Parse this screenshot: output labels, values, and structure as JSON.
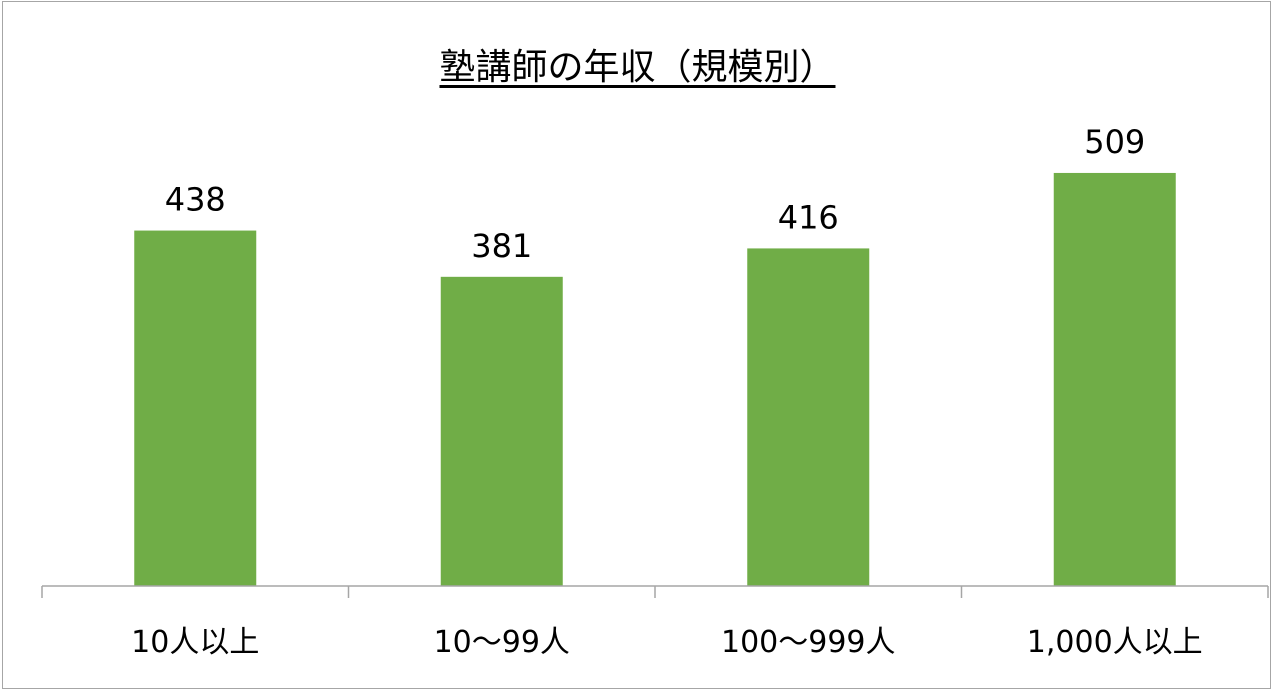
{
  "chart_data": {
    "type": "bar",
    "title": "塾講師の年収（規模別）",
    "categories": [
      "10人以上",
      "10〜99人",
      "100〜999人",
      "1,000人以上"
    ],
    "values": [
      438,
      381,
      416,
      509
    ],
    "data_labels": [
      "438",
      "381",
      "416",
      "509"
    ],
    "xlabel": "",
    "ylabel": "",
    "ylim": [
      0,
      600
    ],
    "y_axis_visible": false,
    "grid": false,
    "legend": "none",
    "bar_color": "#70AD47"
  }
}
